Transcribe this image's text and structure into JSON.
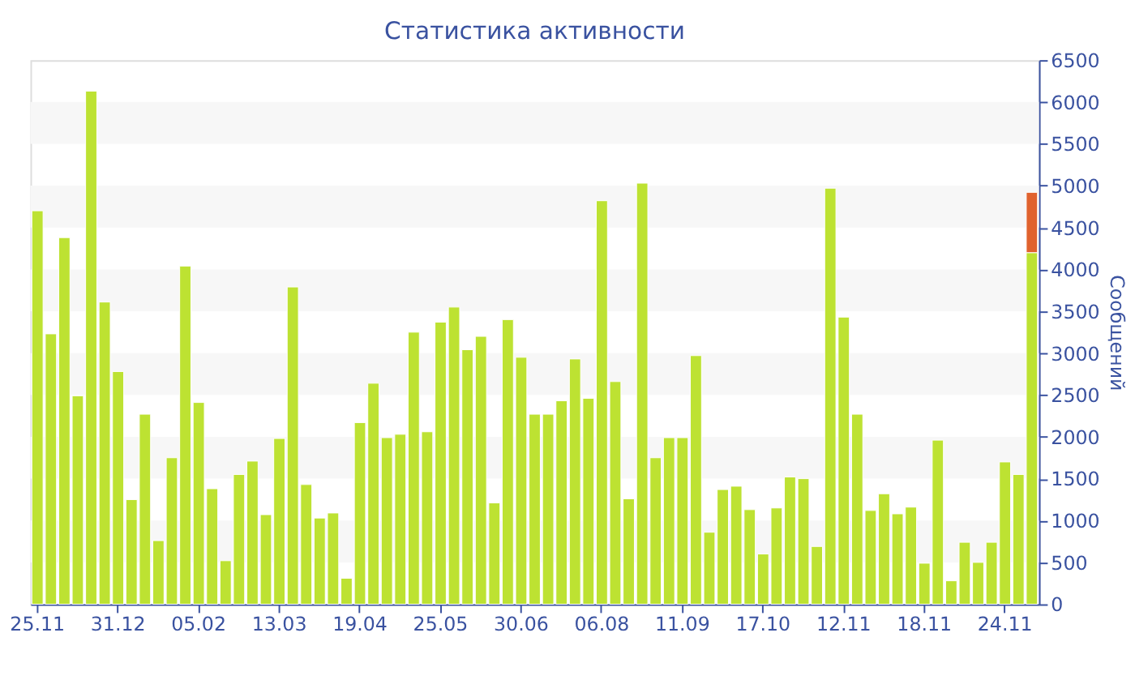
{
  "chart_data": {
    "type": "bar",
    "title": "Статистика активности",
    "ylabel": "Сообщений",
    "categories": [
      "25.11",
      null,
      null,
      null,
      null,
      null,
      "31.12",
      null,
      null,
      null,
      null,
      null,
      "05.02",
      null,
      null,
      null,
      null,
      null,
      "13.03",
      null,
      null,
      null,
      null,
      null,
      "19.04",
      null,
      null,
      null,
      null,
      null,
      "25.05",
      null,
      null,
      null,
      null,
      null,
      "30.06",
      null,
      null,
      null,
      null,
      null,
      "06.08",
      null,
      null,
      null,
      null,
      null,
      "11.09",
      null,
      null,
      null,
      null,
      null,
      "17.10",
      null,
      null,
      null,
      null,
      null,
      "12.11",
      null,
      null,
      null,
      null,
      null,
      "18.11",
      null,
      null,
      null,
      null,
      null,
      "24.11",
      null,
      null
    ],
    "stacked": true,
    "series": [
      {
        "color": "#bde232",
        "values": [
          4700,
          3230,
          4380,
          2490,
          6130,
          3610,
          2780,
          1250,
          2270,
          760,
          1750,
          4040,
          2410,
          1380,
          520,
          1550,
          1710,
          1070,
          1980,
          3790,
          1430,
          1030,
          1090,
          310,
          2170,
          2640,
          1990,
          2030,
          3250,
          2060,
          3370,
          3550,
          3040,
          3200,
          1210,
          3400,
          2950,
          2270,
          2270,
          2430,
          2930,
          2460,
          4820,
          2660,
          1260,
          5030,
          1750,
          1990,
          1990,
          2970,
          860,
          1370,
          1410,
          1130,
          600,
          1150,
          1520,
          1500,
          690,
          4970,
          3430,
          2270,
          1120,
          1320,
          1080,
          1160,
          490,
          1960,
          280,
          740,
          500,
          740,
          1700,
          1550,
          4200
        ]
      },
      {
        "color": "#e0622e",
        "values": [
          null,
          null,
          null,
          null,
          null,
          null,
          null,
          null,
          null,
          null,
          null,
          null,
          null,
          null,
          null,
          null,
          null,
          null,
          null,
          null,
          null,
          null,
          null,
          null,
          null,
          null,
          null,
          null,
          null,
          null,
          null,
          null,
          null,
          null,
          null,
          null,
          null,
          null,
          null,
          null,
          null,
          null,
          null,
          null,
          null,
          null,
          null,
          null,
          null,
          null,
          null,
          null,
          null,
          null,
          null,
          null,
          null,
          null,
          null,
          null,
          null,
          null,
          null,
          null,
          null,
          null,
          null,
          null,
          null,
          null,
          null,
          null,
          null,
          null,
          720
        ]
      }
    ],
    "ylim": [
      0,
      6500
    ],
    "yticks": [
      0,
      500,
      1000,
      1500,
      2000,
      2500,
      3000,
      3500,
      4000,
      4500,
      5000,
      5500,
      6000,
      6500
    ],
    "bands": [
      {
        "axis": "y",
        "from": 500,
        "to": 1000,
        "color": "#f7f7f7"
      },
      {
        "axis": "y",
        "from": 1500,
        "to": 2000,
        "color": "#f7f7f7"
      },
      {
        "axis": "y",
        "from": 2500,
        "to": 3000,
        "color": "#f7f7f7"
      },
      {
        "axis": "y",
        "from": 3500,
        "to": 4000,
        "color": "#f7f7f7"
      },
      {
        "axis": "y",
        "from": 4500,
        "to": 5000,
        "color": "#f7f7f7"
      },
      {
        "axis": "y",
        "from": 5500,
        "to": 6000,
        "color": "#f7f7f7"
      }
    ],
    "legend": false
  }
}
